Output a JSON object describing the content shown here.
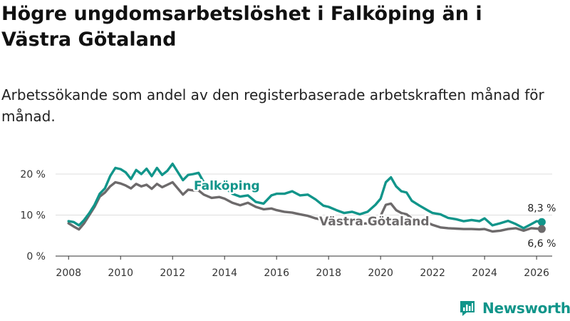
{
  "title": "Högre ungdomsarbetslöshet i Falköping än i Västra Götaland",
  "subtitle": "Arbetssökande som andel av den registerbaserade arbetskraften månad för månad.",
  "brand": {
    "name": "Newsworthy",
    "icon": "newsworthy-logo-icon"
  },
  "colors": {
    "falkoping": "#11958a",
    "vastra": "#6d6a6b",
    "grid": "#dddddd",
    "axis": "#333333"
  },
  "chart_data": {
    "type": "line",
    "title": "Högre ungdomsarbetslöshet i Falköping än i Västra Götaland",
    "xlabel": "",
    "ylabel": "",
    "xlim": [
      2007.5,
      2026.6
    ],
    "ylim": [
      0,
      20
    ],
    "xticks": [
      2008,
      2010,
      2012,
      2014,
      2016,
      2018,
      2020,
      2022,
      2024,
      2026
    ],
    "yticks": [
      {
        "value": 0,
        "label": "0 %"
      },
      {
        "value": 10,
        "label": "10 %"
      },
      {
        "value": 20,
        "label": "20 %"
      }
    ],
    "series": [
      {
        "name": "Falköping",
        "color": "#11958a",
        "x": [
          2008.0,
          2008.2,
          2008.4,
          2008.6,
          2008.8,
          2009.0,
          2009.2,
          2009.4,
          2009.6,
          2009.8,
          2010.0,
          2010.2,
          2010.4,
          2010.6,
          2010.8,
          2011.0,
          2011.2,
          2011.4,
          2011.6,
          2011.8,
          2012.0,
          2012.2,
          2012.4,
          2012.6,
          2012.8,
          2013.0,
          2013.2,
          2013.5,
          2013.8,
          2014.0,
          2014.3,
          2014.6,
          2014.9,
          2015.2,
          2015.5,
          2015.8,
          2016.0,
          2016.3,
          2016.6,
          2016.9,
          2017.2,
          2017.5,
          2017.8,
          2018.0,
          2018.3,
          2018.6,
          2018.9,
          2019.2,
          2019.5,
          2019.8,
          2020.0,
          2020.2,
          2020.4,
          2020.6,
          2020.8,
          2021.0,
          2021.2,
          2021.5,
          2021.8,
          2022.0,
          2022.3,
          2022.6,
          2022.9,
          2023.2,
          2023.5,
          2023.8,
          2024.0,
          2024.3,
          2024.6,
          2024.9,
          2025.2,
          2025.5,
          2025.8,
          2026.0,
          2026.2
        ],
        "values": [
          8.5,
          8.3,
          7.5,
          8.8,
          10.5,
          12.5,
          15.2,
          16.5,
          19.5,
          21.5,
          21.2,
          20.4,
          18.8,
          21.0,
          20.0,
          21.3,
          19.5,
          21.5,
          19.8,
          20.8,
          22.5,
          20.5,
          18.5,
          19.8,
          20.0,
          20.3,
          18.0,
          16.5,
          17.0,
          16.8,
          15.2,
          14.5,
          14.8,
          13.2,
          12.8,
          14.8,
          15.2,
          15.2,
          15.8,
          14.8,
          15.0,
          13.8,
          12.3,
          12.0,
          11.2,
          10.5,
          10.8,
          10.2,
          10.8,
          12.5,
          14.0,
          18.0,
          19.2,
          17.0,
          15.8,
          15.5,
          13.5,
          12.3,
          11.2,
          10.5,
          10.2,
          9.3,
          9.0,
          8.5,
          8.8,
          8.5,
          9.2,
          7.5,
          8.0,
          8.6,
          7.8,
          6.8,
          7.8,
          8.5,
          8.3
        ],
        "end_label": "8,3 %",
        "inline_label": "Falköping"
      },
      {
        "name": "Västra Götaland",
        "color": "#6d6a6b",
        "x": [
          2008.0,
          2008.2,
          2008.4,
          2008.6,
          2008.8,
          2009.0,
          2009.2,
          2009.4,
          2009.6,
          2009.8,
          2010.0,
          2010.2,
          2010.4,
          2010.6,
          2010.8,
          2011.0,
          2011.2,
          2011.4,
          2011.6,
          2011.8,
          2012.0,
          2012.2,
          2012.4,
          2012.6,
          2012.8,
          2013.0,
          2013.2,
          2013.5,
          2013.8,
          2014.0,
          2014.3,
          2014.6,
          2014.9,
          2015.2,
          2015.5,
          2015.8,
          2016.0,
          2016.3,
          2016.6,
          2016.9,
          2017.2,
          2017.5,
          2017.8,
          2018.0,
          2018.3,
          2018.6,
          2018.9,
          2019.2,
          2019.5,
          2019.8,
          2020.0,
          2020.2,
          2020.4,
          2020.6,
          2020.8,
          2021.0,
          2021.2,
          2021.5,
          2021.8,
          2022.0,
          2022.3,
          2022.6,
          2022.9,
          2023.2,
          2023.5,
          2023.8,
          2024.0,
          2024.3,
          2024.6,
          2024.9,
          2025.2,
          2025.5,
          2025.8,
          2026.0,
          2026.2
        ],
        "values": [
          8.0,
          7.2,
          6.5,
          8.0,
          10.0,
          12.0,
          14.5,
          15.5,
          17.0,
          18.0,
          17.7,
          17.2,
          16.5,
          17.6,
          17.0,
          17.4,
          16.4,
          17.6,
          16.8,
          17.4,
          18.0,
          16.5,
          15.0,
          16.2,
          16.0,
          16.0,
          15.0,
          14.2,
          14.4,
          14.0,
          13.0,
          12.4,
          13.0,
          12.0,
          11.4,
          11.6,
          11.2,
          10.8,
          10.6,
          10.2,
          9.8,
          9.2,
          8.8,
          8.6,
          8.2,
          7.9,
          8.0,
          7.8,
          8.0,
          8.6,
          9.8,
          12.5,
          12.8,
          11.2,
          10.5,
          10.2,
          9.2,
          8.8,
          8.2,
          7.6,
          7.0,
          6.8,
          6.7,
          6.6,
          6.6,
          6.5,
          6.6,
          6.0,
          6.2,
          6.6,
          6.8,
          6.2,
          6.8,
          6.7,
          6.6
        ],
        "end_label": "6,6 %",
        "inline_label": "Västra Götaland"
      }
    ]
  }
}
